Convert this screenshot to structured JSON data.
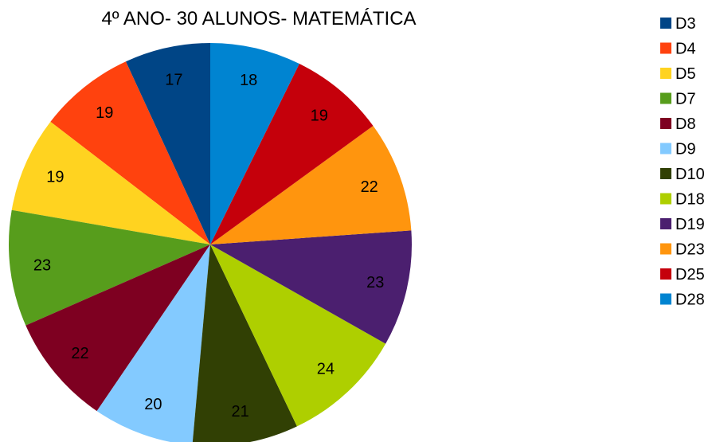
{
  "chart_data": {
    "type": "pie",
    "title": "4º ANO- 30 ALUNOS- MATEMÁTICA",
    "legend_position": "right",
    "start": "top",
    "direction": "counterclockwise",
    "slices": [
      {
        "name": "D3",
        "value": 17,
        "color": "#004586"
      },
      {
        "name": "D4",
        "value": 19,
        "color": "#ff420e"
      },
      {
        "name": "D5",
        "value": 19,
        "color": "#ffd320"
      },
      {
        "name": "D7",
        "value": 23,
        "color": "#579d1c"
      },
      {
        "name": "D8",
        "value": 22,
        "color": "#7e0021"
      },
      {
        "name": "D9",
        "value": 20,
        "color": "#83caff"
      },
      {
        "name": "D10",
        "value": 21,
        "color": "#314004"
      },
      {
        "name": "D18",
        "value": 24,
        "color": "#aecf00"
      },
      {
        "name": "D19",
        "value": 23,
        "color": "#4b1f6f"
      },
      {
        "name": "D23",
        "value": 22,
        "color": "#ff950e"
      },
      {
        "name": "D25",
        "value": 19,
        "color": "#c5000b"
      },
      {
        "name": "D28",
        "value": 18,
        "color": "#0084d1"
      }
    ]
  }
}
